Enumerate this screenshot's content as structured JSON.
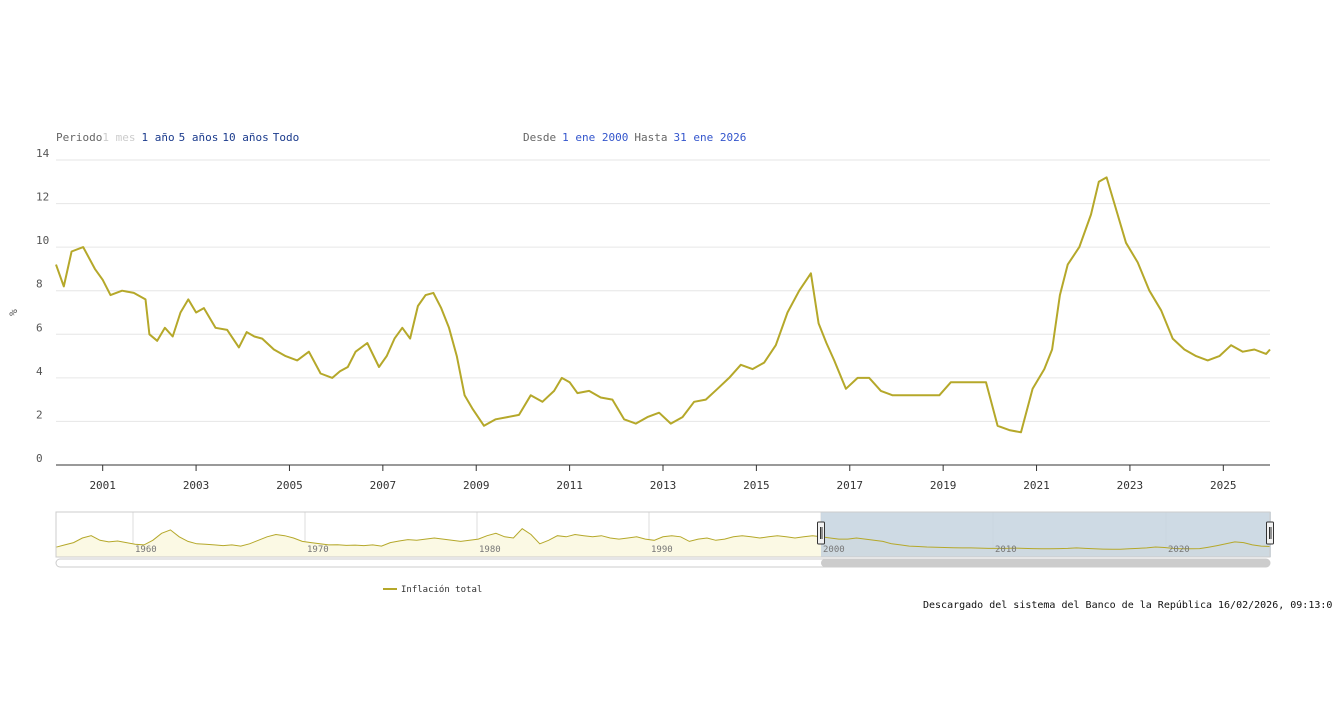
{
  "toolbar": {
    "period_label": "Periodo",
    "buttons": [
      "1 mes",
      "1 año",
      "5 años",
      "10 años",
      "Todo"
    ],
    "from_label": "Desde",
    "from_value": "1 ene 2000",
    "to_label": "Hasta",
    "to_value": "31 ene 2026"
  },
  "credit": "Descargado del sistema del Banco de la República 16/02/2026, 09:13:0",
  "colors": {
    "series": "#b5a82a",
    "grid": "#e6e6e6",
    "selection": "#c5d3df"
  },
  "navigator": {
    "ticks": [
      "1960",
      "1970",
      "1980",
      "1990",
      "2000",
      "2010",
      "2020"
    ],
    "values": [
      2.5,
      3.5,
      4.5,
      6.5,
      7.5,
      5.5,
      4.8,
      5.2,
      4.5,
      3.8,
      3.5,
      5.5,
      8.5,
      10.0,
      7.0,
      5.0,
      4.0,
      3.8,
      3.5,
      3.2,
      3.5,
      3.0,
      4.0,
      5.5,
      7.0,
      8.0,
      7.5,
      6.5,
      5.0,
      4.5,
      4.0,
      3.5,
      3.6,
      3.3,
      3.4,
      3.2,
      3.5,
      3.0,
      4.5,
      5.2,
      5.8,
      5.5,
      6.0,
      6.5,
      6.0,
      5.5,
      5.0,
      5.5,
      6.0,
      7.5,
      8.5,
      7.0,
      6.5,
      10.5,
      8.0,
      4.0,
      5.5,
      7.5,
      7.0,
      8.0,
      7.5,
      7.0,
      7.5,
      6.5,
      6.0,
      6.5,
      7.0,
      6.0,
      5.5,
      7.0,
      7.5,
      7.0,
      5.0,
      6.0,
      6.5,
      5.5,
      6.0,
      7.0,
      7.5,
      7.0,
      6.5,
      7.0,
      7.5,
      7.0,
      6.5,
      7.0,
      7.5,
      7.0,
      6.5,
      6.0,
      6.0,
      6.5,
      6.0,
      5.5,
      5.0,
      4.0,
      3.5,
      3.0,
      2.8,
      2.6,
      2.5,
      2.4,
      2.3,
      2.2,
      2.2,
      2.1,
      2.0,
      2.0,
      2.0,
      2.1,
      2.0,
      1.9,
      1.8,
      1.8,
      1.9,
      2.0,
      2.2,
      2.0,
      1.8,
      1.7,
      1.6,
      1.6,
      1.8,
      2.0,
      2.2,
      2.6,
      2.4,
      2.0,
      1.8,
      1.8,
      1.9,
      2.5,
      3.2,
      4.0,
      4.8,
      4.5,
      3.5,
      3.0,
      2.8
    ]
  },
  "legend": {
    "label": "Inflación total"
  },
  "chart_data": {
    "type": "line",
    "title": "",
    "xlabel": "",
    "ylabel": "%",
    "ylim": [
      0,
      14
    ],
    "yticks": [
      0,
      2,
      4,
      6,
      8,
      10,
      12,
      14
    ],
    "xticks": [
      "2001",
      "2003",
      "2005",
      "2007",
      "2009",
      "2011",
      "2013",
      "2015",
      "2017",
      "2019",
      "2021",
      "2023",
      "2025"
    ],
    "xrange": [
      "2000-01",
      "2026-01"
    ],
    "grid": true,
    "legend_position": "bottom",
    "series": [
      {
        "name": "Inflación total",
        "color": "#b5a82a",
        "x": [
          "2000-01",
          "2000-03",
          "2000-05",
          "2000-08",
          "2000-11",
          "2001-01",
          "2001-03",
          "2001-06",
          "2001-09",
          "2001-12",
          "2002-01",
          "2002-03",
          "2002-05",
          "2002-07",
          "2002-09",
          "2002-11",
          "2003-01",
          "2003-03",
          "2003-06",
          "2003-09",
          "2003-12",
          "2004-02",
          "2004-04",
          "2004-06",
          "2004-09",
          "2004-12",
          "2005-03",
          "2005-06",
          "2005-09",
          "2005-12",
          "2006-02",
          "2006-04",
          "2006-06",
          "2006-09",
          "2006-12",
          "2007-02",
          "2007-04",
          "2007-06",
          "2007-08",
          "2007-10",
          "2007-12",
          "2008-02",
          "2008-04",
          "2008-06",
          "2008-08",
          "2008-10",
          "2008-12",
          "2009-03",
          "2009-06",
          "2009-09",
          "2009-12",
          "2010-03",
          "2010-06",
          "2010-09",
          "2010-11",
          "2011-01",
          "2011-03",
          "2011-06",
          "2011-09",
          "2011-12",
          "2012-03",
          "2012-06",
          "2012-09",
          "2012-12",
          "2013-03",
          "2013-06",
          "2013-09",
          "2013-12",
          "2014-03",
          "2014-06",
          "2014-09",
          "2014-12",
          "2015-03",
          "2015-06",
          "2015-09",
          "2015-12",
          "2016-03",
          "2016-05",
          "2016-07",
          "2016-09",
          "2016-12",
          "2017-03",
          "2017-06",
          "2017-09",
          "2017-12",
          "2018-03",
          "2018-06",
          "2018-09",
          "2018-12",
          "2019-03",
          "2019-06",
          "2019-09",
          "2019-12",
          "2020-03",
          "2020-06",
          "2020-09",
          "2020-12",
          "2021-03",
          "2021-05",
          "2021-07",
          "2021-09",
          "2021-12",
          "2022-03",
          "2022-05",
          "2022-07",
          "2022-09",
          "2022-12",
          "2023-03",
          "2023-06",
          "2023-09",
          "2023-12",
          "2024-03",
          "2024-06",
          "2024-09",
          "2024-12",
          "2025-03",
          "2025-06",
          "2025-09",
          "2025-12",
          "2026-01"
        ],
        "y": [
          9.2,
          8.2,
          9.8,
          10.0,
          9.0,
          8.5,
          7.8,
          8.0,
          7.9,
          7.6,
          6.0,
          5.7,
          6.3,
          5.9,
          7.0,
          7.6,
          7.0,
          7.2,
          6.3,
          6.2,
          5.4,
          6.1,
          5.9,
          5.8,
          5.3,
          5.0,
          4.8,
          5.2,
          4.2,
          4.0,
          4.3,
          4.5,
          5.2,
          5.6,
          4.5,
          5.0,
          5.8,
          6.3,
          5.8,
          7.3,
          7.8,
          7.9,
          7.2,
          6.3,
          5.0,
          3.2,
          2.6,
          1.8,
          2.1,
          2.2,
          2.3,
          3.2,
          2.9,
          3.4,
          4.0,
          3.8,
          3.3,
          3.4,
          3.1,
          3.0,
          2.1,
          1.9,
          2.2,
          2.4,
          1.9,
          2.2,
          2.9,
          3.0,
          3.5,
          4.0,
          4.6,
          4.4,
          4.7,
          5.5,
          7.0,
          8.0,
          8.8,
          6.5,
          5.6,
          4.8,
          3.5,
          4.0,
          4.0,
          3.4,
          3.2,
          3.2,
          3.2,
          3.2,
          3.2,
          3.8,
          3.8,
          3.8,
          3.8,
          1.8,
          1.6,
          1.5,
          3.5,
          4.4,
          5.3,
          7.8,
          9.2,
          10.0,
          11.5,
          13.0,
          13.2,
          12.0,
          10.2,
          9.3,
          8.0,
          7.1,
          5.8,
          5.3,
          5.0,
          4.8,
          5.0,
          5.5,
          5.2,
          5.3,
          5.1,
          5.3
        ]
      }
    ]
  }
}
